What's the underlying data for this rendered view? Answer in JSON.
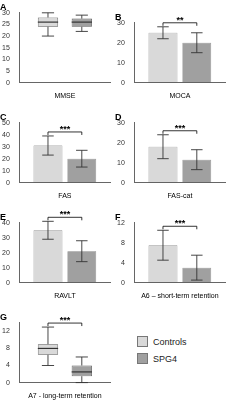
{
  "chart_data": [
    {
      "type": "box",
      "title": "A",
      "x_label": "MMSE",
      "categories": [
        null
      ],
      "ylim": [
        0,
        30
      ],
      "yticks": [
        0,
        5,
        10,
        15,
        20,
        25,
        30
      ],
      "grid": false,
      "tick_labels": "y",
      "series": [
        {
          "name": "Controls",
          "color": "#d9d9d9",
          "min": [
            20
          ],
          "q1": [
            24
          ],
          "median": [
            26
          ],
          "q3": [
            28
          ],
          "max": [
            30
          ]
        },
        {
          "name": "SPG4",
          "color": "#a0a0a0",
          "min": [
            22
          ],
          "q1": [
            24
          ],
          "median": [
            26
          ],
          "q3": [
            27.5
          ],
          "max": [
            29
          ]
        }
      ]
    },
    {
      "type": "bar",
      "title": "B",
      "x_label": "MOCA",
      "annotation": "**",
      "categories": [
        null
      ],
      "ylim": [
        0,
        30
      ],
      "yticks": [
        0,
        10,
        20,
        30
      ],
      "grid": false,
      "tick_labels": "y",
      "series": [
        {
          "name": "Controls",
          "color": "#d9d9d9",
          "values": [
            25
          ],
          "errors": [
            3
          ]
        },
        {
          "name": "SPG4",
          "color": "#a0a0a0",
          "values": [
            20
          ],
          "errors": [
            5
          ]
        }
      ]
    },
    {
      "type": "bar",
      "title": "C",
      "x_label": "FAS",
      "annotation": "***",
      "categories": [
        null
      ],
      "ylim": [
        0,
        50
      ],
      "yticks": [
        0,
        10,
        20,
        30,
        40,
        50
      ],
      "grid": false,
      "tick_labels": "y",
      "series": [
        {
          "name": "Controls",
          "color": "#d9d9d9",
          "values": [
            31
          ],
          "errors": [
            8
          ]
        },
        {
          "name": "SPG4",
          "color": "#a0a0a0",
          "values": [
            20
          ],
          "errors": [
            7
          ]
        }
      ]
    },
    {
      "type": "bar",
      "title": "D",
      "x_label": "FAS-cat",
      "annotation": "***",
      "categories": [
        null
      ],
      "ylim": [
        0,
        30
      ],
      "yticks": [
        0,
        10,
        20,
        30
      ],
      "grid": false,
      "tick_labels": "y",
      "series": [
        {
          "name": "Controls",
          "color": "#d9d9d9",
          "values": [
            18
          ],
          "errors": [
            6
          ]
        },
        {
          "name": "SPG4",
          "color": "#a0a0a0",
          "values": [
            11.5
          ],
          "errors": [
            5
          ]
        }
      ]
    },
    {
      "type": "bar",
      "title": "E",
      "x_label": "RAVLT",
      "annotation": "***",
      "categories": [
        null
      ],
      "ylim": [
        0,
        40
      ],
      "yticks": [
        0,
        10,
        20,
        30,
        40
      ],
      "grid": false,
      "tick_labels": "y",
      "series": [
        {
          "name": "Controls",
          "color": "#d9d9d9",
          "values": [
            35
          ],
          "errors": [
            6
          ]
        },
        {
          "name": "SPG4",
          "color": "#a0a0a0",
          "values": [
            21
          ],
          "errors": [
            7
          ]
        }
      ]
    },
    {
      "type": "bar",
      "title": "F",
      "x_label": "A6 – short-term retention",
      "annotation": "***",
      "categories": [
        null
      ],
      "ylim": [
        0,
        12
      ],
      "yticks": [
        0,
        4,
        8,
        12
      ],
      "grid": false,
      "tick_labels": "y",
      "series": [
        {
          "name": "Controls",
          "color": "#d9d9d9",
          "values": [
            7.5
          ],
          "errors": [
            3
          ]
        },
        {
          "name": "SPG4",
          "color": "#a0a0a0",
          "values": [
            3
          ],
          "errors": [
            2.5
          ]
        }
      ]
    },
    {
      "type": "box",
      "title": "G",
      "x_label": "A7 - long-term retention",
      "annotation": "***",
      "categories": [
        null
      ],
      "ylim": [
        0,
        14
      ],
      "yticks": [
        0,
        4,
        8,
        12
      ],
      "grid": false,
      "tick_labels": "y",
      "legend": "right",
      "series": [
        {
          "name": "Controls",
          "color": "#d9d9d9",
          "min": [
            4
          ],
          "q1": [
            6.5
          ],
          "median": [
            8
          ],
          "q3": [
            9
          ],
          "max": [
            13
          ]
        },
        {
          "name": "SPG4",
          "color": "#a0a0a0",
          "min": [
            0
          ],
          "q1": [
            1.5
          ],
          "median": [
            2.5
          ],
          "q3": [
            4
          ],
          "max": [
            6
          ]
        }
      ]
    }
  ]
}
